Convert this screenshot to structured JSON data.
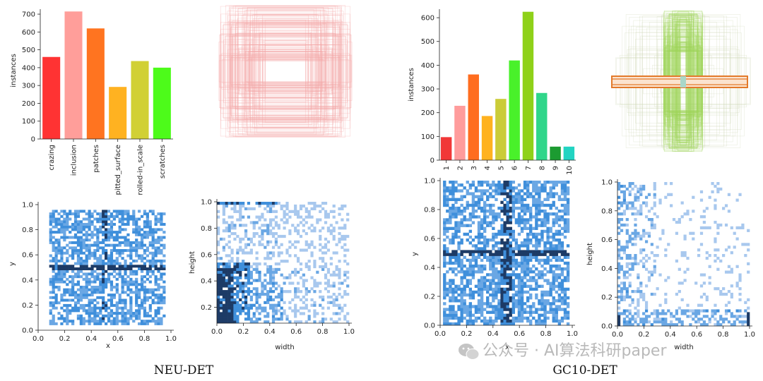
{
  "colors": {
    "neu_bars": [
      "#ff3333",
      "#ff9e9a",
      "#ff7420",
      "#ffb221",
      "#d1d034",
      "#4dfb1a"
    ],
    "gc_bars": [
      "#f13737",
      "#ff9c9c",
      "#ff6d1f",
      "#ffb21f",
      "#cbcc38",
      "#49f12a",
      "#8fd119",
      "#30d68a",
      "#1c9b31",
      "#22d4c2"
    ],
    "heat_light": "#a8c8ee",
    "heat_mid": "#3f8fdb",
    "heat_dark": "#1d3b66",
    "neu_boxes": "#f4a7a7",
    "gc_boxes_1": "#9fd65a",
    "gc_boxes_2": "#e37a2b"
  },
  "panels": {
    "neu_title": "NEU-DET",
    "gc_title": "GC10-DET"
  },
  "watermark": {
    "text": "公众号 · AI算法科研paper",
    "icon": "wechat-icon"
  },
  "chart_data": [
    {
      "id": "neu-class-counts",
      "type": "bar",
      "title": "",
      "xlabel": "",
      "ylabel": "instances",
      "categories": [
        "crazing",
        "inclusion",
        "patches",
        "pitted_surface",
        "rolled-in_scale",
        "scratches"
      ],
      "values": [
        460,
        715,
        620,
        292,
        437,
        400
      ],
      "ylim": [
        0,
        720
      ],
      "yticks": [
        "0",
        "100",
        "200",
        "300",
        "400",
        "500",
        "600",
        "700"
      ],
      "ytick_values": [
        0,
        100,
        200,
        300,
        400,
        500,
        600,
        700
      ],
      "tick_rotation": "vertical",
      "grid": false
    },
    {
      "id": "neu-box-overlay",
      "type": "other",
      "description_type": "bounding-box-overlay",
      "title": "",
      "grid": false
    },
    {
      "id": "neu-xy-heatmap",
      "type": "heatmap",
      "title": "",
      "xlabel": "x",
      "ylabel": "y",
      "xlim": [
        0,
        1
      ],
      "ylim": [
        0,
        1
      ],
      "xticks": [
        "0.0",
        "0.2",
        "0.4",
        "0.6",
        "0.8",
        "1.0"
      ],
      "yticks": [
        "0.0",
        "0.2",
        "0.4",
        "0.6",
        "0.8",
        "1.0"
      ],
      "pattern": "center cross at x=0.5, y=0.5",
      "grid": false
    },
    {
      "id": "neu-wh-heatmap",
      "type": "heatmap",
      "title": "",
      "xlabel": "width",
      "ylabel": "height",
      "xlim": [
        0,
        1
      ],
      "ylim": [
        0.08,
        1
      ],
      "xticks": [
        "0.0",
        "0.2",
        "0.4",
        "0.6",
        "0.8",
        "1.0"
      ],
      "yticks": [
        "0.2",
        "0.4",
        "0.6",
        "0.8",
        "1.0"
      ],
      "pattern": "dense at small width/height, strip at height=1.0",
      "grid": false
    },
    {
      "id": "gc-class-counts",
      "type": "bar",
      "title": "",
      "xlabel": "",
      "ylabel": "instances",
      "categories": [
        "1",
        "2",
        "3",
        "4",
        "5",
        "6",
        "7",
        "8",
        "9",
        "10"
      ],
      "values": [
        97,
        229,
        361,
        186,
        258,
        420,
        625,
        283,
        57,
        57
      ],
      "ylim": [
        0,
        630
      ],
      "yticks": [
        "0",
        "100",
        "200",
        "300",
        "400",
        "500",
        "600"
      ],
      "ytick_values": [
        0,
        100,
        200,
        300,
        400,
        500,
        600
      ],
      "tick_rotation": "vertical",
      "grid": false
    },
    {
      "id": "gc-box-overlay",
      "type": "other",
      "description_type": "bounding-box-overlay",
      "title": "",
      "grid": false
    },
    {
      "id": "gc-xy-heatmap",
      "type": "heatmap",
      "title": "",
      "xlabel": "x",
      "ylabel": "y",
      "xlim": [
        0,
        1
      ],
      "ylim": [
        0,
        1
      ],
      "xticks": [
        "0.0",
        "0.2",
        "0.4",
        "0.6",
        "0.8",
        "1.0"
      ],
      "yticks": [
        "0.0",
        "0.2",
        "0.4",
        "0.6",
        "0.8",
        "1.0"
      ],
      "pattern": "center cross at x=0.5, y=0.5",
      "grid": false
    },
    {
      "id": "gc-wh-heatmap",
      "type": "heatmap",
      "title": "",
      "xlabel": "width",
      "ylabel": "height",
      "xlim": [
        0,
        1
      ],
      "ylim": [
        0,
        1
      ],
      "xticks": [
        "0.0",
        "0.2",
        "0.4",
        "0.6",
        "0.8",
        "1.0"
      ],
      "yticks": [
        "0.0",
        "0.2",
        "0.4",
        "0.6",
        "0.8",
        "1.0"
      ],
      "pattern": "dense near small width, strip at height≈0.1",
      "grid": false
    }
  ]
}
